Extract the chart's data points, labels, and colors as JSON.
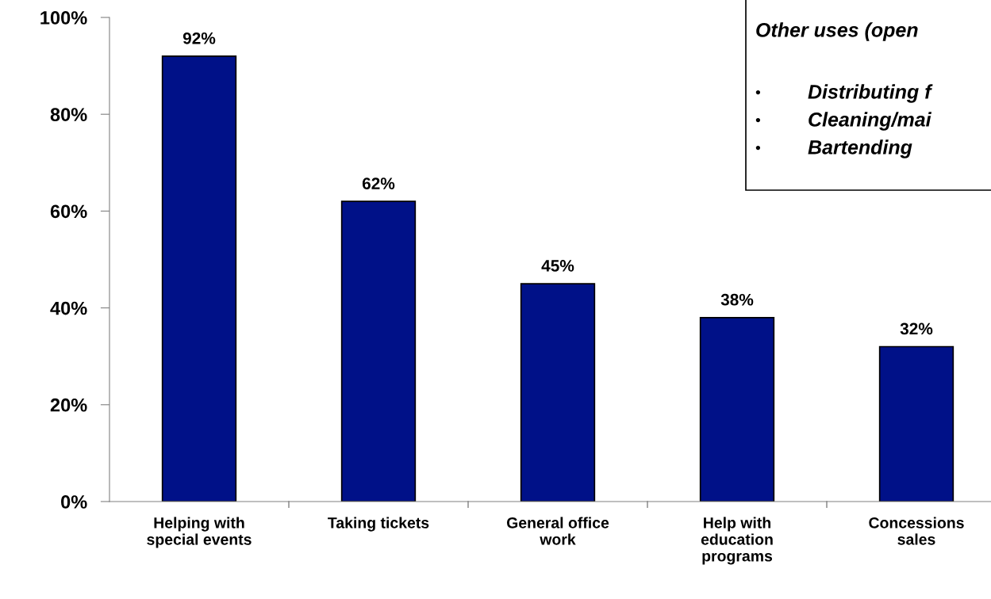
{
  "chart_data": {
    "type": "bar",
    "categories": [
      "Helping with\nspecial events",
      "Taking tickets",
      "General office\nwork",
      "Help with\neducation\nprograms",
      "Concessions\nsales"
    ],
    "values": [
      92,
      62,
      45,
      38,
      32
    ],
    "color": "#001188",
    "value_labels": [
      "92%",
      "62%",
      "45%",
      "38%",
      "32%"
    ],
    "ylim": [
      0,
      100
    ],
    "yticks": [
      {
        "value": 0,
        "label": "0%"
      },
      {
        "value": 20,
        "label": "20%"
      },
      {
        "value": 40,
        "label": "40%"
      },
      {
        "value": 60,
        "label": "60%"
      },
      {
        "value": 80,
        "label": "80%"
      },
      {
        "value": 100,
        "label": "100%"
      }
    ],
    "grid": false,
    "annotations": [
      "Other uses (open",
      "•",
      "Distributing f",
      "•",
      "Cleaning/mai",
      "•",
      "Bartending"
    ]
  }
}
